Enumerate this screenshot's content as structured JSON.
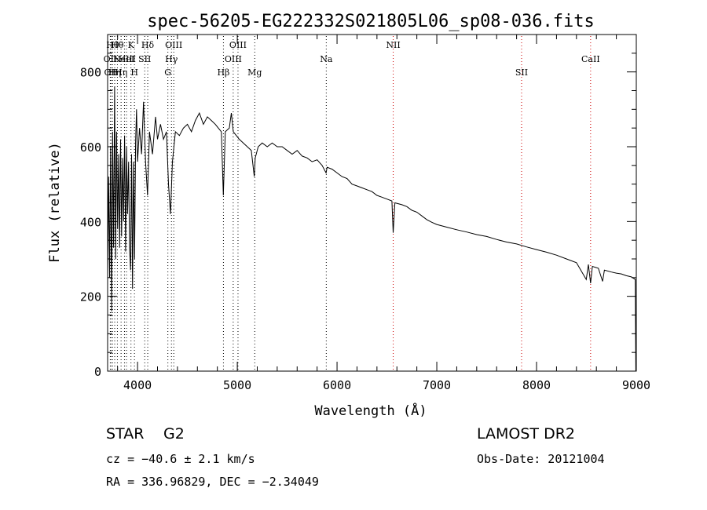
{
  "chart_data": {
    "type": "line",
    "title": "spec-56205-EG222332S021805L06_sp08-036.fits",
    "xlabel": "Wavelength (Å)",
    "ylabel": "Flux (relative)",
    "xlim": [
      3700,
      9000
    ],
    "ylim": [
      0,
      900
    ],
    "xticks": [
      4000,
      5000,
      6000,
      7000,
      8000,
      9000
    ],
    "yticks": [
      0,
      200,
      400,
      600,
      800
    ],
    "grid": false,
    "series": [
      {
        "points": [
          [
            3700,
            260
          ],
          [
            3710,
            520
          ],
          [
            3720,
            250
          ],
          [
            3730,
            600
          ],
          [
            3740,
            160
          ],
          [
            3750,
            640
          ],
          [
            3760,
            330
          ],
          [
            3770,
            760
          ],
          [
            3780,
            300
          ],
          [
            3790,
            640
          ],
          [
            3800,
            380
          ],
          [
            3810,
            580
          ],
          [
            3820,
            330
          ],
          [
            3830,
            620
          ],
          [
            3840,
            360
          ],
          [
            3850,
            570
          ],
          [
            3860,
            400
          ],
          [
            3870,
            630
          ],
          [
            3880,
            320
          ],
          [
            3890,
            600
          ],
          [
            3900,
            420
          ],
          [
            3910,
            560
          ],
          [
            3920,
            330
          ],
          [
            3930,
            270
          ],
          [
            3940,
            580
          ],
          [
            3950,
            220
          ],
          [
            3960,
            560
          ],
          [
            3970,
            300
          ],
          [
            3980,
            610
          ],
          [
            3990,
            700
          ],
          [
            4000,
            560
          ],
          [
            4020,
            650
          ],
          [
            4040,
            580
          ],
          [
            4060,
            720
          ],
          [
            4080,
            560
          ],
          [
            4100,
            470
          ],
          [
            4120,
            640
          ],
          [
            4150,
            580
          ],
          [
            4180,
            680
          ],
          [
            4200,
            620
          ],
          [
            4230,
            660
          ],
          [
            4260,
            620
          ],
          [
            4290,
            640
          ],
          [
            4310,
            500
          ],
          [
            4330,
            420
          ],
          [
            4350,
            560
          ],
          [
            4380,
            640
          ],
          [
            4420,
            630
          ],
          [
            4460,
            650
          ],
          [
            4500,
            660
          ],
          [
            4540,
            640
          ],
          [
            4580,
            670
          ],
          [
            4620,
            690
          ],
          [
            4660,
            660
          ],
          [
            4700,
            680
          ],
          [
            4740,
            670
          ],
          [
            4780,
            660
          ],
          [
            4810,
            650
          ],
          [
            4840,
            640
          ],
          [
            4860,
            470
          ],
          [
            4880,
            640
          ],
          [
            4920,
            650
          ],
          [
            4940,
            690
          ],
          [
            4960,
            640
          ],
          [
            4990,
            630
          ],
          [
            5020,
            620
          ],
          [
            5060,
            610
          ],
          [
            5100,
            600
          ],
          [
            5140,
            590
          ],
          [
            5170,
            520
          ],
          [
            5180,
            570
          ],
          [
            5210,
            600
          ],
          [
            5250,
            610
          ],
          [
            5300,
            600
          ],
          [
            5350,
            610
          ],
          [
            5400,
            600
          ],
          [
            5450,
            600
          ],
          [
            5500,
            590
          ],
          [
            5550,
            580
          ],
          [
            5600,
            590
          ],
          [
            5650,
            575
          ],
          [
            5700,
            570
          ],
          [
            5750,
            560
          ],
          [
            5800,
            565
          ],
          [
            5850,
            550
          ],
          [
            5890,
            530
          ],
          [
            5900,
            545
          ],
          [
            5950,
            540
          ],
          [
            6000,
            530
          ],
          [
            6050,
            520
          ],
          [
            6100,
            515
          ],
          [
            6150,
            500
          ],
          [
            6200,
            495
          ],
          [
            6250,
            490
          ],
          [
            6300,
            485
          ],
          [
            6350,
            480
          ],
          [
            6400,
            470
          ],
          [
            6450,
            465
          ],
          [
            6500,
            460
          ],
          [
            6550,
            455
          ],
          [
            6563,
            370
          ],
          [
            6580,
            450
          ],
          [
            6650,
            445
          ],
          [
            6700,
            440
          ],
          [
            6750,
            430
          ],
          [
            6800,
            425
          ],
          [
            6850,
            415
          ],
          [
            6900,
            405
          ],
          [
            6950,
            398
          ],
          [
            7000,
            392
          ],
          [
            7100,
            385
          ],
          [
            7200,
            378
          ],
          [
            7300,
            372
          ],
          [
            7400,
            365
          ],
          [
            7500,
            360
          ],
          [
            7600,
            352
          ],
          [
            7700,
            345
          ],
          [
            7800,
            340
          ],
          [
            7900,
            332
          ],
          [
            8000,
            325
          ],
          [
            8100,
            318
          ],
          [
            8200,
            310
          ],
          [
            8300,
            300
          ],
          [
            8400,
            290
          ],
          [
            8498,
            245
          ],
          [
            8520,
            285
          ],
          [
            8542,
            235
          ],
          [
            8560,
            280
          ],
          [
            8620,
            275
          ],
          [
            8662,
            240
          ],
          [
            8680,
            270
          ],
          [
            8750,
            265
          ],
          [
            8800,
            262
          ],
          [
            8850,
            260
          ],
          [
            8900,
            255
          ],
          [
            8950,
            252
          ],
          [
            8990,
            245
          ],
          [
            8995,
            0
          ]
        ]
      }
    ],
    "lines": [
      {
        "wl": 3727,
        "label": "OII",
        "row": 1,
        "color": "black"
      },
      {
        "wl": 3734,
        "label": "OII",
        "row": 2,
        "color": "black"
      },
      {
        "wl": 3750,
        "label": "Hθ",
        "row": 0,
        "color": "black"
      },
      {
        "wl": 3771,
        "label": "Hη",
        "row": 2,
        "color": "black"
      },
      {
        "wl": 3798,
        "label": "Hθ",
        "row": 0,
        "color": "black"
      },
      {
        "wl": 3835,
        "label": "Hη",
        "row": 2,
        "color": "black"
      },
      {
        "wl": 3869,
        "label": "NeIII",
        "row": 1,
        "color": "black"
      },
      {
        "wl": 3889,
        "label": "HeI",
        "row": 1,
        "color": "black"
      },
      {
        "wl": 3934,
        "label": "K",
        "row": 0,
        "color": "black"
      },
      {
        "wl": 3969,
        "label": "H",
        "row": 2,
        "color": "black"
      },
      {
        "wl": 4072,
        "label": "SII",
        "row": 1,
        "color": "black"
      },
      {
        "wl": 4102,
        "label": "Hδ",
        "row": 0,
        "color": "black"
      },
      {
        "wl": 4304,
        "label": "G",
        "row": 2,
        "color": "black"
      },
      {
        "wl": 4340,
        "label": "Hγ",
        "row": 1,
        "color": "black"
      },
      {
        "wl": 4363,
        "label": "OIII",
        "row": 0,
        "color": "black"
      },
      {
        "wl": 4861,
        "label": "Hβ",
        "row": 2,
        "color": "black"
      },
      {
        "wl": 4959,
        "label": "OIII",
        "row": 1,
        "color": "black"
      },
      {
        "wl": 5007,
        "label": "OIII",
        "row": 0,
        "color": "black"
      },
      {
        "wl": 5175,
        "label": "Mg",
        "row": 2,
        "color": "black"
      },
      {
        "wl": 5892,
        "label": "Na",
        "row": 1,
        "color": "black"
      },
      {
        "wl": 6563,
        "label": "NII",
        "row": 0,
        "color": "#cc0000"
      },
      {
        "wl": 7850,
        "label": "SII",
        "row": 2,
        "color": "#cc0000"
      },
      {
        "wl": 8542,
        "label": "CaII",
        "row": 1,
        "color": "#cc0000"
      }
    ]
  },
  "footer": {
    "object_class": "STAR",
    "subclass": "G2",
    "survey": "LAMOST DR2",
    "cz": "cz = −40.6 ± 2.1 km/s",
    "obs_date": "Obs-Date: 20121004",
    "coords": "RA = 336.96829, DEC =  −2.34049"
  }
}
